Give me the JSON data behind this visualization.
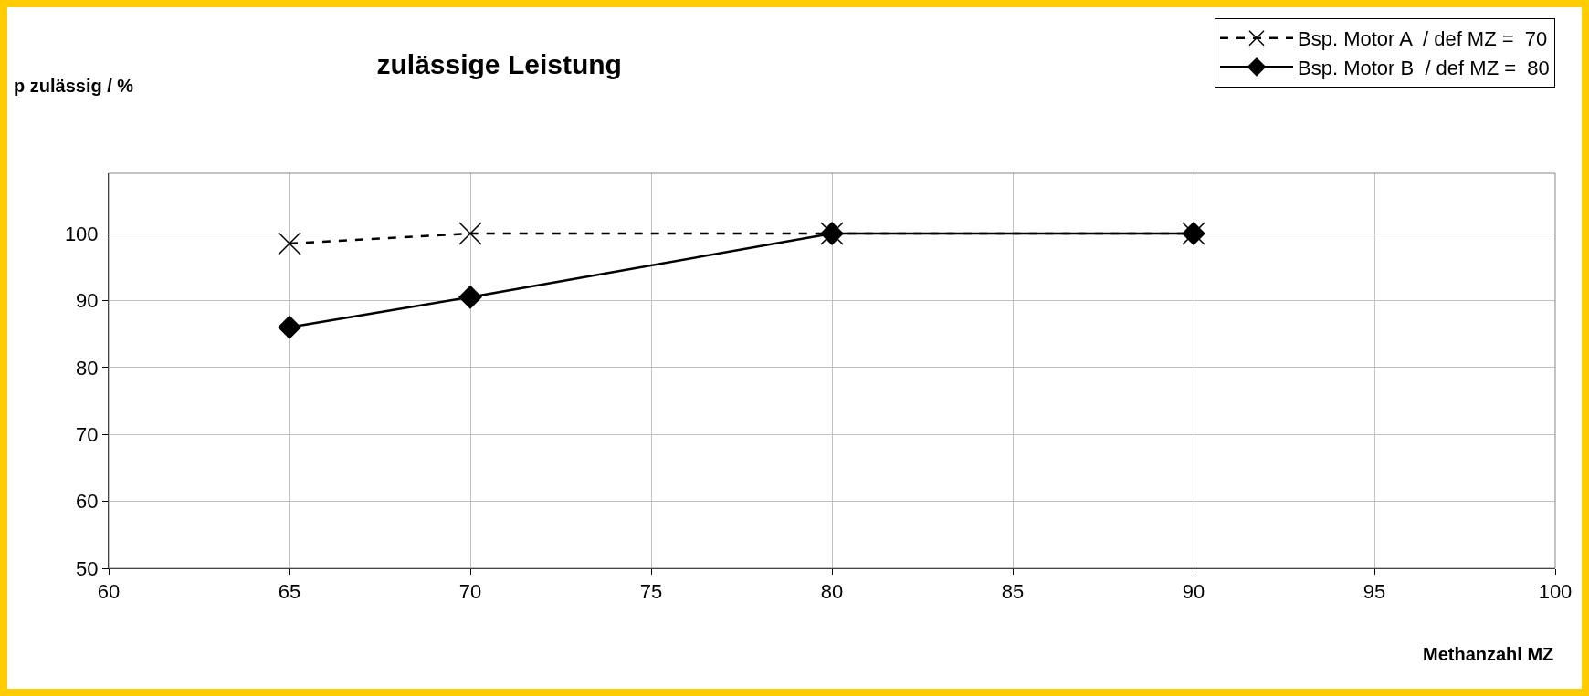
{
  "chart_data": {
    "type": "line",
    "title": "zulässige Leistung",
    "xlabel": "Methanzahl MZ",
    "ylabel": "p zulässig / %",
    "x": [
      65,
      70,
      80,
      90
    ],
    "series": [
      {
        "name": "Bsp. Motor A  / def MZ =  70",
        "color": "#000000",
        "marker": "cross",
        "line_style": "dashed",
        "values": [
          98.5,
          100,
          100,
          100
        ]
      },
      {
        "name": "Bsp. Motor B  / def MZ =  80",
        "color": "#000000",
        "marker": "diamond",
        "line_style": "solid",
        "values": [
          86,
          90.5,
          100,
          100
        ]
      }
    ],
    "xlim": [
      60,
      100
    ],
    "xticks": [
      60,
      65,
      70,
      75,
      80,
      85,
      90,
      95,
      100
    ],
    "ylim": [
      50,
      109
    ],
    "yticks": [
      50,
      60,
      70,
      80,
      90,
      100
    ],
    "grid": true,
    "legend": "top right"
  }
}
